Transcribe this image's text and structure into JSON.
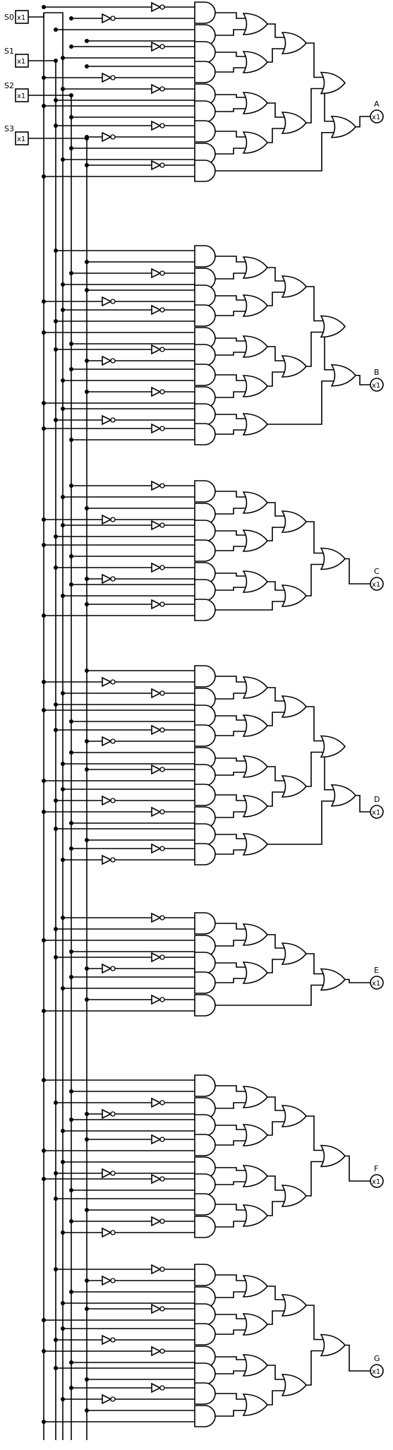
{
  "inputs": [
    {
      "name": "S0",
      "value": "x1"
    },
    {
      "name": "S1",
      "value": "x1"
    },
    {
      "name": "S2",
      "value": "x1"
    },
    {
      "name": "S3",
      "value": "x1"
    }
  ],
  "outputs": [
    {
      "name": "A",
      "value": "x1"
    },
    {
      "name": "B",
      "value": "x1"
    },
    {
      "name": "C",
      "value": "x1"
    },
    {
      "name": "D",
      "value": "x1"
    },
    {
      "name": "E",
      "value": "x1"
    },
    {
      "name": "F",
      "value": "x1"
    },
    {
      "name": "G",
      "value": "x1"
    }
  ]
}
